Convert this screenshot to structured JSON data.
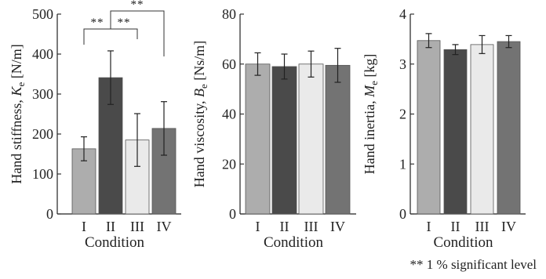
{
  "chart_data": [
    {
      "type": "bar",
      "categories": [
        "I",
        "II",
        "III",
        "IV"
      ],
      "values": [
        163,
        341,
        185,
        214
      ],
      "errors": [
        30,
        67,
        66,
        67
      ],
      "ylabel_text": "Hand stiffness, ",
      "ylabel_symbol": "K",
      "ylabel_sub": "e",
      "ylabel_unit": " [N/m]",
      "xlabel": "Condition",
      "ylim": [
        0,
        500
      ],
      "yticks": [
        0,
        100,
        200,
        300,
        400,
        500
      ],
      "colors": [
        "#adadad",
        "#4a4a4a",
        "#eaeaea",
        "#737373"
      ],
      "significance": [
        {
          "from": 0,
          "to": 1,
          "label": "**",
          "level": 0
        },
        {
          "from": 1,
          "to": 2,
          "label": "**",
          "level": 0
        },
        {
          "from": 1,
          "to": 3,
          "label": "**",
          "level": 1
        }
      ]
    },
    {
      "type": "bar",
      "categories": [
        "I",
        "II",
        "III",
        "IV"
      ],
      "values": [
        60,
        59,
        60,
        59.5
      ],
      "errors": [
        4.5,
        5,
        5.2,
        6.8
      ],
      "ylabel_text": "Hand viscosity, ",
      "ylabel_symbol": "B",
      "ylabel_sub": "e",
      "ylabel_unit": " [Ns/m]",
      "xlabel": "Condition",
      "ylim": [
        0,
        80
      ],
      "yticks": [
        0,
        20,
        40,
        60,
        80
      ],
      "colors": [
        "#adadad",
        "#4a4a4a",
        "#eaeaea",
        "#737373"
      ],
      "significance": []
    },
    {
      "type": "bar",
      "categories": [
        "I",
        "II",
        "III",
        "IV"
      ],
      "values": [
        3.47,
        3.29,
        3.39,
        3.45
      ],
      "errors": [
        0.14,
        0.1,
        0.18,
        0.12
      ],
      "ylabel_text": "Hand inertia, ",
      "ylabel_symbol": "M",
      "ylabel_sub": "e",
      "ylabel_unit": " [kg]",
      "xlabel": "Condition",
      "ylim": [
        0,
        4
      ],
      "yticks": [
        0,
        1,
        2,
        3,
        4
      ],
      "colors": [
        "#adadad",
        "#4a4a4a",
        "#eaeaea",
        "#737373"
      ],
      "significance": []
    }
  ],
  "footnote": "** 1 % significant level"
}
